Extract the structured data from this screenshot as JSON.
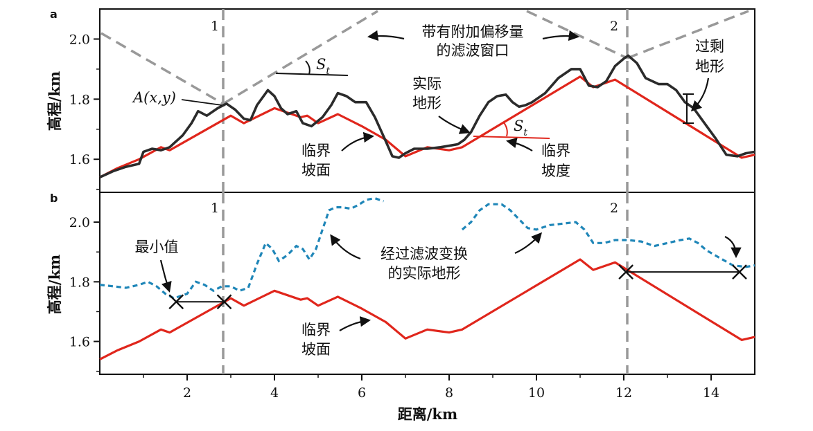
{
  "xlabel": "距离/km",
  "x_tick_labels": [
    "2",
    "4",
    "6",
    "8",
    "10",
    "12",
    "14"
  ],
  "colors": {
    "actual_terrain": "#2b2b2b",
    "critical_slope_surface": "#e0261c",
    "filtered_terrain": "#1f86b8",
    "window_lines": "#999999",
    "frame": "#111111"
  },
  "chart_data": [
    {
      "type": "line",
      "panel": "a",
      "ylabel": "高程/km",
      "y_tick_labels": [
        "1.6",
        "1.8",
        "2.0"
      ],
      "xlim": [
        0,
        15
      ],
      "ylim": [
        1.49,
        2.1
      ],
      "grid": false,
      "series": [
        {
          "key": "actual",
          "x": [
            0,
            0.3,
            0.6,
            0.9,
            1.0,
            1.2,
            1.4,
            1.6,
            1.9,
            2.1,
            2.25,
            2.45,
            2.7,
            2.9,
            3.1,
            3.3,
            3.45,
            3.6,
            3.85,
            4.0,
            4.15,
            4.3,
            4.5,
            4.65,
            4.85,
            5.1,
            5.3,
            5.45,
            5.65,
            5.85,
            6.1,
            6.3,
            6.55,
            6.7,
            6.85,
            7.0,
            7.2,
            7.5,
            7.8,
            8.0,
            8.2,
            8.35,
            8.5,
            8.7,
            8.9,
            9.1,
            9.3,
            9.45,
            9.6,
            9.75,
            9.9,
            10.2,
            10.5,
            10.8,
            11.0,
            11.2,
            11.4,
            11.6,
            11.8,
            12.0,
            12.1,
            12.3,
            12.5,
            12.8,
            13.0,
            13.2,
            13.4,
            13.6,
            13.85,
            14.1,
            14.35,
            14.6,
            14.8,
            15.0
          ],
          "y": [
            1.54,
            1.56,
            1.575,
            1.585,
            1.625,
            1.635,
            1.63,
            1.64,
            1.68,
            1.72,
            1.76,
            1.745,
            1.77,
            1.785,
            1.765,
            1.735,
            1.73,
            1.78,
            1.83,
            1.81,
            1.77,
            1.75,
            1.76,
            1.72,
            1.71,
            1.74,
            1.78,
            1.82,
            1.81,
            1.79,
            1.79,
            1.74,
            1.66,
            1.61,
            1.605,
            1.62,
            1.635,
            1.635,
            1.64,
            1.645,
            1.65,
            1.665,
            1.69,
            1.745,
            1.79,
            1.81,
            1.815,
            1.79,
            1.775,
            1.78,
            1.79,
            1.82,
            1.87,
            1.9,
            1.9,
            1.845,
            1.84,
            1.86,
            1.91,
            1.935,
            1.945,
            1.92,
            1.87,
            1.85,
            1.85,
            1.83,
            1.79,
            1.77,
            1.72,
            1.67,
            1.615,
            1.61,
            1.62,
            1.625
          ]
        },
        {
          "key": "critical",
          "x": [
            0,
            0.4,
            0.9,
            1.4,
            1.6,
            3.0,
            3.3,
            4.0,
            4.6,
            4.75,
            5.0,
            5.45,
            6.0,
            6.55,
            7.0,
            7.5,
            8.0,
            8.3,
            11.0,
            11.3,
            11.8,
            14.7,
            15.0
          ],
          "y": [
            1.54,
            1.57,
            1.6,
            1.64,
            1.63,
            1.745,
            1.72,
            1.77,
            1.74,
            1.745,
            1.72,
            1.75,
            1.71,
            1.665,
            1.61,
            1.64,
            1.63,
            1.64,
            1.875,
            1.84,
            1.865,
            1.605,
            1.615
          ]
        }
      ],
      "annotations": {
        "window_label_1": "1",
        "window_label_2": "2",
        "window_caption_line1": "带有附加偏移量",
        "window_caption_line2": "的滤波窗口",
        "point_A": "A(x,y)",
        "slope_symbol_S": "S",
        "slope_symbol_t": "t",
        "actual_line1": "实际",
        "actual_line2": "地形",
        "critical_surface_line1": "临界",
        "critical_surface_line2": "坡面",
        "critical_slope_line1": "临界",
        "critical_slope_line2": "坡度",
        "excess_line1": "过剩",
        "excess_line2": "地形"
      }
    },
    {
      "type": "line",
      "panel": "b",
      "ylabel": "高程/km",
      "y_tick_labels": [
        "1.6",
        "1.8",
        "2.0"
      ],
      "xlim": [
        0,
        15
      ],
      "ylim": [
        1.49,
        2.1
      ],
      "grid": false,
      "series": [
        {
          "key": "filtered_left",
          "x": [
            0,
            0.3,
            0.6,
            0.9,
            1.1,
            1.3,
            1.5,
            1.7,
            2.0,
            2.2,
            2.4,
            2.6,
            2.8,
            3.0,
            3.2,
            3.4,
            3.6,
            3.8,
            3.95,
            4.1,
            4.3,
            4.5,
            4.65,
            4.8,
            4.95,
            5.1,
            5.25,
            5.4,
            5.55,
            5.75,
            5.95,
            6.1,
            6.3,
            6.5
          ],
          "y": [
            1.79,
            1.785,
            1.78,
            1.79,
            1.8,
            1.785,
            1.76,
            1.745,
            1.76,
            1.8,
            1.79,
            1.77,
            1.785,
            1.785,
            1.77,
            1.78,
            1.86,
            1.93,
            1.91,
            1.87,
            1.89,
            1.92,
            1.91,
            1.875,
            1.91,
            1.975,
            2.04,
            2.05,
            2.05,
            2.045,
            2.06,
            2.075,
            2.08,
            2.07
          ]
        },
        {
          "key": "filtered_right",
          "x": [
            8.3,
            8.5,
            8.7,
            8.9,
            9.2,
            9.4,
            9.6,
            9.8,
            10.0,
            10.3,
            10.6,
            10.9,
            11.1,
            11.3,
            11.55,
            11.8,
            12.1,
            12.4,
            12.7,
            13.0,
            13.3,
            13.5,
            13.7,
            13.9,
            14.2,
            14.5,
            14.8,
            15.0
          ],
          "y": [
            1.975,
            2.0,
            2.04,
            2.06,
            2.06,
            2.04,
            2.01,
            1.98,
            1.975,
            1.99,
            1.995,
            2.0,
            1.975,
            1.93,
            1.93,
            1.94,
            1.94,
            1.935,
            1.92,
            1.93,
            1.94,
            1.945,
            1.93,
            1.905,
            1.88,
            1.855,
            1.85,
            1.855
          ]
        },
        {
          "key": "critical",
          "x": [
            0,
            0.4,
            0.9,
            1.4,
            1.6,
            3.0,
            3.3,
            4.0,
            4.6,
            4.75,
            5.0,
            5.45,
            6.0,
            6.55,
            7.0,
            7.5,
            8.0,
            8.3,
            11.0,
            11.3,
            11.8,
            14.7,
            15.0
          ],
          "y": [
            1.54,
            1.57,
            1.6,
            1.64,
            1.63,
            1.745,
            1.72,
            1.77,
            1.74,
            1.745,
            1.72,
            1.75,
            1.71,
            1.665,
            1.61,
            1.64,
            1.63,
            1.64,
            1.875,
            1.84,
            1.865,
            1.605,
            1.615
          ]
        }
      ],
      "minimum_markers": [
        {
          "from_x": 1.75,
          "to_x": 2.85,
          "y": 1.733
        },
        {
          "from_x": 12.05,
          "to_x": 14.65,
          "y": 1.833
        }
      ],
      "annotations": {
        "window_label_1": "1",
        "window_label_2": "2",
        "min_label": "最小值",
        "filtered_line1": "经过滤波变换",
        "filtered_line2": "的实际地形",
        "critical_surface_line1": "临界",
        "critical_surface_line2": "坡面"
      }
    }
  ]
}
